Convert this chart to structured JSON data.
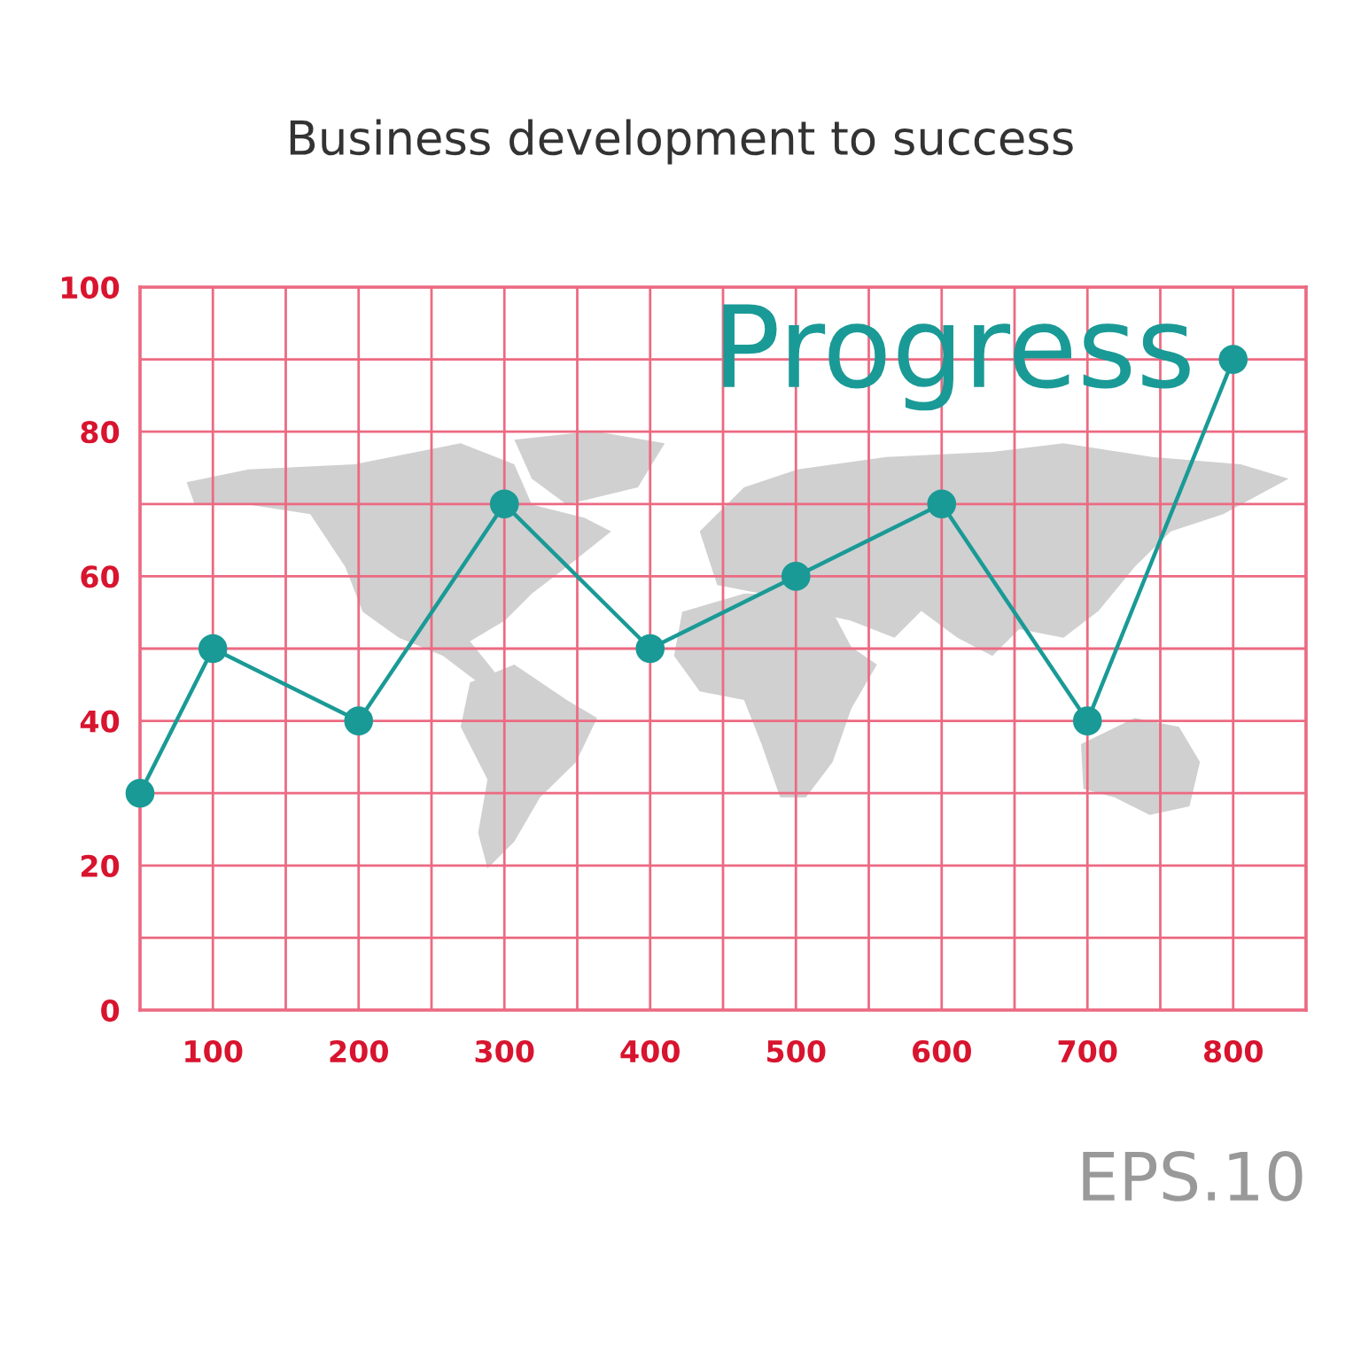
{
  "chart_data": {
    "type": "line",
    "title": "Business development to success",
    "x": [
      50,
      100,
      200,
      300,
      400,
      500,
      600,
      700,
      800
    ],
    "series": [
      {
        "color": "#1a9a96",
        "values": [
          30,
          50,
          40,
          70,
          50,
          60,
          70,
          40,
          90
        ]
      }
    ],
    "xlim": [
      50,
      850
    ],
    "xticks": [
      {
        "value": 50,
        "label": null
      },
      100,
      {
        "value": 150,
        "label": null
      },
      200,
      {
        "value": 250,
        "label": null
      },
      300,
      {
        "value": 350,
        "label": null
      },
      400,
      {
        "value": 450,
        "label": null
      },
      500,
      {
        "value": 550,
        "label": null
      },
      600,
      {
        "value": 650,
        "label": null
      },
      700,
      {
        "value": 750,
        "label": null
      },
      800,
      {
        "value": 850,
        "label": null
      }
    ],
    "ylim": [
      0,
      100
    ],
    "yticks": [
      0,
      {
        "value": 10,
        "label": null
      },
      20,
      {
        "value": 30,
        "label": null
      },
      40,
      {
        "value": 50,
        "label": null
      },
      60,
      {
        "value": 70,
        "label": null
      },
      80,
      {
        "value": 90,
        "label": null
      },
      100
    ],
    "grid": true,
    "marker": "circle",
    "line_style": "solid",
    "annotations": [
      "Progress",
      "EPS.10"
    ]
  }
}
